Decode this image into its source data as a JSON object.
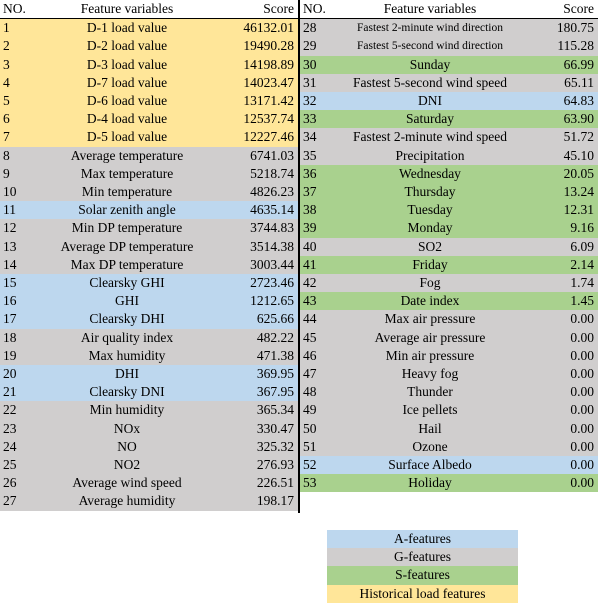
{
  "headers": {
    "no": "NO.",
    "feature": "Feature variables",
    "score": "Score"
  },
  "left_rows": [
    {
      "no": "1",
      "feature": "D-1 load value",
      "score": "46132.01",
      "type": "H"
    },
    {
      "no": "2",
      "feature": "D-2 load value",
      "score": "19490.28",
      "type": "H"
    },
    {
      "no": "3",
      "feature": "D-3 load value",
      "score": "14198.89",
      "type": "H"
    },
    {
      "no": "4",
      "feature": "D-7 load value",
      "score": "14023.47",
      "type": "H"
    },
    {
      "no": "5",
      "feature": "D-6 load value",
      "score": "13171.42",
      "type": "H"
    },
    {
      "no": "6",
      "feature": "D-4 load value",
      "score": "12537.74",
      "type": "H"
    },
    {
      "no": "7",
      "feature": "D-5 load value",
      "score": "12227.46",
      "type": "H"
    },
    {
      "no": "8",
      "feature": "Average temperature",
      "score": "6741.03",
      "type": "G"
    },
    {
      "no": "9",
      "feature": "Max temperature",
      "score": "5218.74",
      "type": "G"
    },
    {
      "no": "10",
      "feature": "Min temperature",
      "score": "4826.23",
      "type": "G"
    },
    {
      "no": "11",
      "feature": "Solar zenith angle",
      "score": "4635.14",
      "type": "A"
    },
    {
      "no": "12",
      "feature": "Min DP temperature",
      "score": "3744.83",
      "type": "G"
    },
    {
      "no": "13",
      "feature": "Average DP temperature",
      "score": "3514.38",
      "type": "G"
    },
    {
      "no": "14",
      "feature": "Max DP temperature",
      "score": "3003.44",
      "type": "G"
    },
    {
      "no": "15",
      "feature": "Clearsky GHI",
      "score": "2723.46",
      "type": "A"
    },
    {
      "no": "16",
      "feature": "GHI",
      "score": "1212.65",
      "type": "A"
    },
    {
      "no": "17",
      "feature": "Clearsky DHI",
      "score": "625.66",
      "type": "A"
    },
    {
      "no": "18",
      "feature": "Air quality index",
      "score": "482.22",
      "type": "G"
    },
    {
      "no": "19",
      "feature": "Max humidity",
      "score": "471.38",
      "type": "G"
    },
    {
      "no": "20",
      "feature": "DHI",
      "score": "369.95",
      "type": "A"
    },
    {
      "no": "21",
      "feature": "Clearsky DNI",
      "score": "367.95",
      "type": "A"
    },
    {
      "no": "22",
      "feature": "Min humidity",
      "score": "365.34",
      "type": "G"
    },
    {
      "no": "23",
      "feature": "NOx",
      "score": "330.47",
      "type": "G"
    },
    {
      "no": "24",
      "feature": "NO",
      "score": "325.32",
      "type": "G"
    },
    {
      "no": "25",
      "feature": "NO2",
      "score": "276.93",
      "type": "G"
    },
    {
      "no": "26",
      "feature": "Average wind speed",
      "score": "226.51",
      "type": "G"
    },
    {
      "no": "27",
      "feature": "Average humidity",
      "score": "198.17",
      "type": "G"
    }
  ],
  "right_rows": [
    {
      "no": "28",
      "feature": "Fastest 2-minute wind direction",
      "score": "180.75",
      "type": "G",
      "small": true
    },
    {
      "no": "29",
      "feature": "Fastest 5-second wind direction",
      "score": "115.28",
      "type": "G",
      "small": true
    },
    {
      "no": "30",
      "feature": "Sunday",
      "score": "66.99",
      "type": "S"
    },
    {
      "no": "31",
      "feature": "Fastest 5-second wind speed",
      "score": "65.11",
      "type": "G"
    },
    {
      "no": "32",
      "feature": "DNI",
      "score": "64.83",
      "type": "A"
    },
    {
      "no": "33",
      "feature": "Saturday",
      "score": "63.90",
      "type": "S"
    },
    {
      "no": "34",
      "feature": "Fastest 2-minute wind speed",
      "score": "51.72",
      "type": "G"
    },
    {
      "no": "35",
      "feature": "Precipitation",
      "score": "45.10",
      "type": "G"
    },
    {
      "no": "36",
      "feature": "Wednesday",
      "score": "20.05",
      "type": "S"
    },
    {
      "no": "37",
      "feature": "Thursday",
      "score": "13.24",
      "type": "S"
    },
    {
      "no": "38",
      "feature": "Tuesday",
      "score": "12.31",
      "type": "S"
    },
    {
      "no": "39",
      "feature": "Monday",
      "score": "9.16",
      "type": "S"
    },
    {
      "no": "40",
      "feature": "SO2",
      "score": "6.09",
      "type": "G"
    },
    {
      "no": "41",
      "feature": "Friday",
      "score": "2.14",
      "type": "S"
    },
    {
      "no": "42",
      "feature": "Fog",
      "score": "1.74",
      "type": "G"
    },
    {
      "no": "43",
      "feature": "Date index",
      "score": "1.45",
      "type": "S"
    },
    {
      "no": "44",
      "feature": "Max air pressure",
      "score": "0.00",
      "type": "G"
    },
    {
      "no": "45",
      "feature": "Average air pressure",
      "score": "0.00",
      "type": "G"
    },
    {
      "no": "46",
      "feature": "Min air pressure",
      "score": "0.00",
      "type": "G"
    },
    {
      "no": "47",
      "feature": "Heavy fog",
      "score": "0.00",
      "type": "G"
    },
    {
      "no": "48",
      "feature": "Thunder",
      "score": "0.00",
      "type": "G"
    },
    {
      "no": "49",
      "feature": "Ice pellets",
      "score": "0.00",
      "type": "G"
    },
    {
      "no": "50",
      "feature": "Hail",
      "score": "0.00",
      "type": "G"
    },
    {
      "no": "51",
      "feature": "Ozone",
      "score": "0.00",
      "type": "G"
    },
    {
      "no": "52",
      "feature": "Surface Albedo",
      "score": "0.00",
      "type": "A"
    },
    {
      "no": "53",
      "feature": "Holiday",
      "score": "0.00",
      "type": "S"
    }
  ],
  "legend": [
    {
      "label": "A-features",
      "type": "A"
    },
    {
      "label": "G-features",
      "type": "G"
    },
    {
      "label": "S-features",
      "type": "S"
    },
    {
      "label": "Historical load features",
      "type": "H"
    }
  ],
  "colors": {
    "A": "#bdd7ee",
    "G": "#d0cece",
    "S": "#a9d18e",
    "H": "#ffe699"
  }
}
